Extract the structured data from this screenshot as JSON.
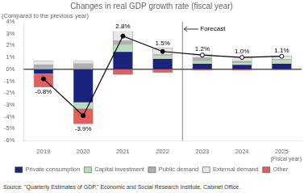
{
  "chart_data": {
    "type": "bar",
    "stacked": true,
    "title": "Changes in real GDP growth rate (fiscal year)",
    "subtitle": "(Compared to the previous year)",
    "source": "Source: \"Quarterly Estimates of GDP,\" Economic and Social Research Institute, Cabinet Office.",
    "xlabel": "(Fiscal year)",
    "categories": [
      "2019",
      "2020",
      "2021",
      "2022",
      "2023",
      "2024",
      "2025"
    ],
    "series": [
      {
        "name": "Private consumption",
        "color": "#1a237e",
        "values": [
          -0.4,
          -2.8,
          1.5,
          0.9,
          0.5,
          0.4,
          0.5
        ]
      },
      {
        "name": "Capital investment",
        "color": "#b8e0b8",
        "values": [
          0.1,
          -0.5,
          0.55,
          0.3,
          0.2,
          0.2,
          0.25
        ]
      },
      {
        "name": "Public demand",
        "color": "#b0b0b0",
        "values": [
          0.3,
          0.5,
          0.4,
          0.1,
          0.3,
          0.1,
          0.1
        ]
      },
      {
        "name": "External demand",
        "color": "#e8e8e8",
        "values": [
          0.3,
          0.2,
          0.75,
          0.5,
          0.3,
          0.4,
          0.3
        ]
      },
      {
        "name": "Other",
        "color": "#e06060",
        "values": [
          -1.1,
          -1.3,
          -0.45,
          -0.3,
          -0.1,
          -0.1,
          -0.05
        ]
      },
      {
        "type": "line",
        "color": "#000000",
        "marker": "circle",
        "data_labels": true,
        "values": [
          -0.8,
          -3.9,
          2.8,
          1.5,
          1.2,
          1.0,
          1.1
        ],
        "value_labels": [
          "-0.8%",
          "-3.9%",
          "2.8%",
          "1.5%",
          "1.2%",
          "1.0%",
          "1.1%"
        ]
      }
    ],
    "annotations": [
      {
        "text": "Forecast",
        "x": "2023"
      }
    ],
    "ylim": [
      -6,
      4
    ],
    "yticks": [
      {
        "value": -6,
        "label": "-6%"
      },
      {
        "value": -5,
        "label": "-5%"
      },
      {
        "value": -4,
        "label": "-4%"
      },
      {
        "value": -3,
        "label": "-3%"
      },
      {
        "value": -2,
        "label": "-2%"
      },
      {
        "value": -1,
        "label": "-1%"
      },
      {
        "value": 0,
        "label": "0%"
      },
      {
        "value": 1,
        "label": "1%"
      },
      {
        "value": 2,
        "label": "2%"
      },
      {
        "value": 3,
        "label": "3%"
      },
      {
        "value": 4,
        "label": "4%"
      }
    ],
    "grid": false,
    "legend": "bottom"
  }
}
